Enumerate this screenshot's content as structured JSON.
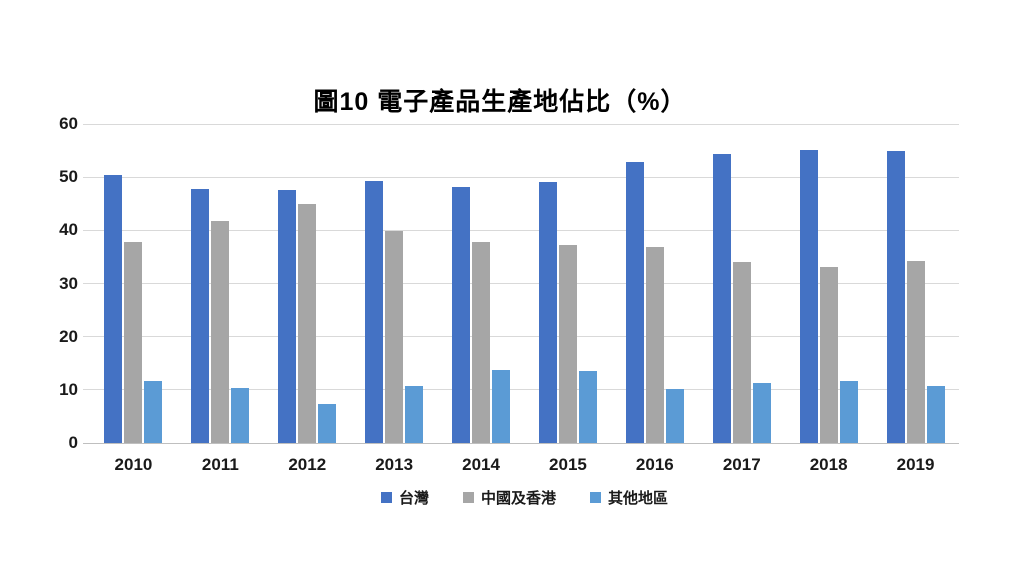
{
  "chart_data": {
    "type": "bar",
    "title": "圖10 電子產品生產地佔比（%）",
    "categories": [
      "2010",
      "2011",
      "2012",
      "2013",
      "2014",
      "2015",
      "2016",
      "2017",
      "2018",
      "2019"
    ],
    "series": [
      {
        "key": "taiwan",
        "name": "台灣",
        "color": "#4472C4",
        "values": [
          50.4,
          47.7,
          47.6,
          49.2,
          48.1,
          49.0,
          52.8,
          54.3,
          55.1,
          55.0
        ]
      },
      {
        "key": "china-hongkong",
        "name": "中國及香港",
        "color": "#A6A6A6",
        "values": [
          37.8,
          41.8,
          44.9,
          39.9,
          37.9,
          37.2,
          36.9,
          34.1,
          33.1,
          34.2
        ]
      },
      {
        "key": "others",
        "name": "其他地區",
        "color": "#5B9BD5",
        "values": [
          11.6,
          10.4,
          7.3,
          10.7,
          13.8,
          13.6,
          10.1,
          11.3,
          11.7,
          10.7
        ]
      }
    ],
    "xlabel": "",
    "ylabel": "",
    "ylim": [
      0,
      60
    ],
    "yticks": [
      0,
      10,
      20,
      30,
      40,
      50,
      60
    ],
    "grid": true,
    "legend_position": "bottom"
  },
  "colors": {
    "gridline": "#D9D9D9",
    "baseline": "#BFBFBF",
    "axis_text": "#1a1a1a",
    "background": "#FFFFFF"
  }
}
